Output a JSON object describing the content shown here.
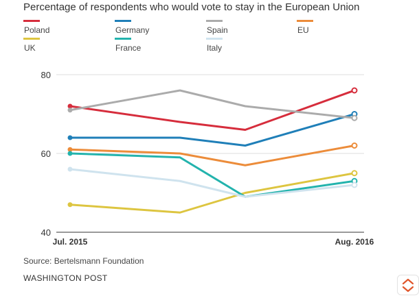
{
  "chart_data": {
    "type": "line",
    "title": "Percentage of respondents who would vote to stay in the European Union",
    "xlabel": "",
    "ylabel": "",
    "x": [
      0,
      1,
      2,
      3
    ],
    "x_tick_labels": [
      "Jul. 2015",
      "",
      "",
      "Aug. 2016"
    ],
    "ylim": [
      40,
      80
    ],
    "y_ticks": [
      40,
      60,
      80
    ],
    "grid": true,
    "series": [
      {
        "name": "Poland",
        "color": "#d62d3c",
        "values": [
          72,
          68,
          66,
          76
        ]
      },
      {
        "name": "Germany",
        "color": "#1f7fb8",
        "values": [
          64,
          64,
          62,
          70
        ]
      },
      {
        "name": "Spain",
        "color": "#ababab",
        "values": [
          71,
          76,
          72,
          69
        ]
      },
      {
        "name": "EU",
        "color": "#ec8c3a",
        "values": [
          61,
          60,
          57,
          62
        ]
      },
      {
        "name": "UK",
        "color": "#ddc540",
        "values": [
          47,
          45,
          50,
          55
        ]
      },
      {
        "name": "France",
        "color": "#23b3ad",
        "values": [
          60,
          59,
          49,
          53
        ]
      },
      {
        "name": "Italy",
        "color": "#cfe3ee",
        "values": [
          56,
          53,
          49,
          52
        ]
      }
    ]
  },
  "source": "Source: Bertelsmann Foundation",
  "brand": "WASHINGTON POST"
}
